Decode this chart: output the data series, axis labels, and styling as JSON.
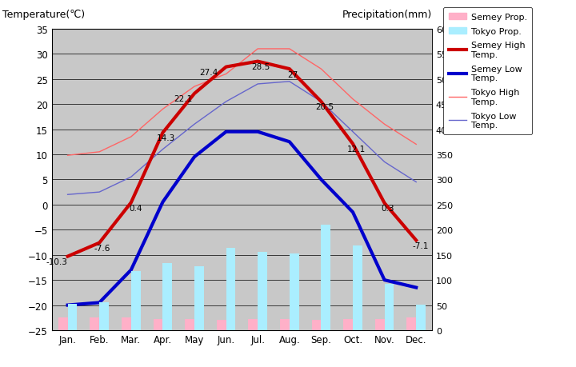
{
  "months": [
    "Jan.",
    "Feb.",
    "Mar.",
    "Apr.",
    "May",
    "Jun.",
    "Jul.",
    "Aug.",
    "Sep.",
    "Oct.",
    "Nov.",
    "Dec."
  ],
  "semey_high": [
    -10.3,
    -7.6,
    0.4,
    14.3,
    22.1,
    27.4,
    28.5,
    27.0,
    20.5,
    12.1,
    0.3,
    -7.1
  ],
  "semey_low": [
    -20.0,
    -19.5,
    -13.0,
    0.5,
    9.5,
    14.5,
    14.5,
    12.5,
    5.0,
    -1.5,
    -15.0,
    -16.5
  ],
  "tokyo_high": [
    9.8,
    10.5,
    13.5,
    19.0,
    23.5,
    26.0,
    31.0,
    31.0,
    27.0,
    21.0,
    16.0,
    12.0
  ],
  "tokyo_low": [
    2.0,
    2.5,
    5.5,
    11.0,
    16.0,
    20.5,
    24.0,
    24.5,
    20.5,
    14.5,
    8.5,
    4.5
  ],
  "semey_precip": [
    26.0,
    25.0,
    25.0,
    23.0,
    22.0,
    21.0,
    22.0,
    22.0,
    21.0,
    22.0,
    23.0,
    25.0
  ],
  "tokyo_precip": [
    52.0,
    56.0,
    118.0,
    133.0,
    128.0,
    164.0,
    156.0,
    153.0,
    210.0,
    168.0,
    93.0,
    51.0
  ],
  "temp_ylim": [
    -25,
    35
  ],
  "precip_ylim": [
    0,
    600
  ],
  "bg_color": "#c8c8c8",
  "semey_high_color": "#cc0000",
  "semey_low_color": "#0000cc",
  "tokyo_high_color": "#ff6666",
  "tokyo_low_color": "#6666cc",
  "semey_precip_color": "#ffb0c8",
  "tokyo_precip_color": "#aaeeff",
  "title_left": "Temperature(℃)",
  "title_right": "Precipitation(mm)",
  "fig_bg": "#ffffff",
  "semey_high_lw": 3.0,
  "semey_low_lw": 3.0,
  "tokyo_high_lw": 1.0,
  "tokyo_low_lw": 1.0,
  "labeled_points": [
    0,
    1,
    2,
    3,
    4,
    5,
    6,
    7,
    8,
    9,
    10,
    11
  ],
  "label_dx": [
    -0.35,
    0.1,
    0.15,
    0.1,
    -0.35,
    -0.55,
    0.1,
    0.1,
    0.1,
    0.1,
    0.1,
    0.15
  ],
  "label_dy": [
    -1.5,
    -1.5,
    -1.5,
    -1.5,
    -1.5,
    -1.5,
    -1.5,
    -1.5,
    -1.5,
    -1.5,
    -1.5,
    -1.5
  ]
}
